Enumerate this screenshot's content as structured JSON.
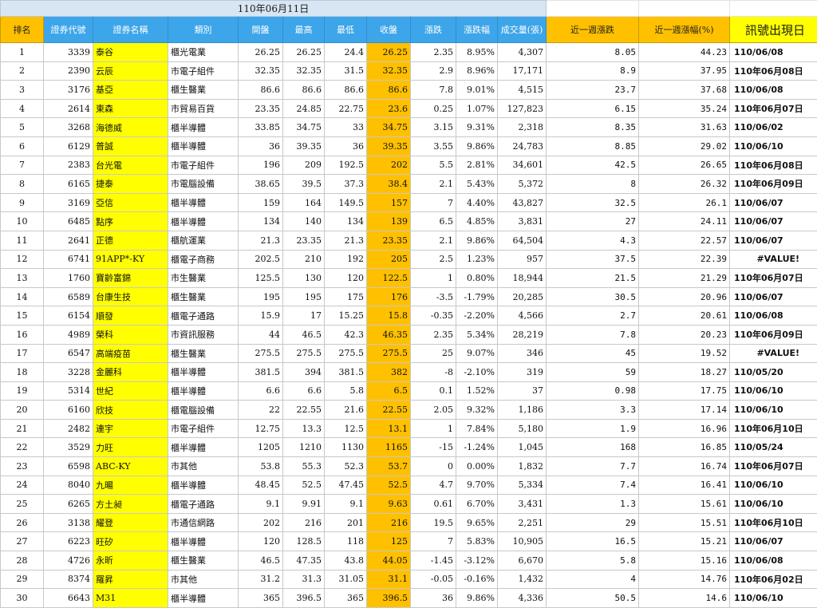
{
  "sheet": {
    "date_title": "110年06月11日",
    "headers": {
      "rank": "排名",
      "code": "證券代號",
      "name": "證券名稱",
      "category": "類別",
      "open": "開盤",
      "high": "最高",
      "low": "最低",
      "close": "收盤",
      "change": "漲跌",
      "change_pct": "漲跌幅",
      "volume": "成交量(張)",
      "week_change": "近一週漲跌",
      "week_change_pct": "近一週漲幅(%)",
      "signal": "訊號出現日"
    },
    "rows": [
      {
        "rank": "1",
        "code": "3339",
        "name": "泰谷",
        "category": "櫃光電業",
        "open": "26.25",
        "high": "26.25",
        "low": "24.4",
        "close": "26.25",
        "change": "2.35",
        "change_pct": "8.95%",
        "volume": "4,307",
        "week_change": "8.05",
        "week_change_pct": "44.23",
        "signal": "110/06/08",
        "dir": "up"
      },
      {
        "rank": "2",
        "code": "2390",
        "name": "云辰",
        "category": "市電子組件",
        "open": "32.35",
        "high": "32.35",
        "low": "31.5",
        "close": "32.35",
        "change": "2.9",
        "change_pct": "8.96%",
        "volume": "17,171",
        "week_change": "8.9",
        "week_change_pct": "37.95",
        "signal": "110年06月08日",
        "dir": "up"
      },
      {
        "rank": "3",
        "code": "3176",
        "name": "基亞",
        "category": "櫃生醫業",
        "open": "86.6",
        "high": "86.6",
        "low": "86.6",
        "close": "86.6",
        "change": "7.8",
        "change_pct": "9.01%",
        "volume": "4,515",
        "week_change": "23.7",
        "week_change_pct": "37.68",
        "signal": "110/06/08",
        "dir": "up"
      },
      {
        "rank": "4",
        "code": "2614",
        "name": "東森",
        "category": "市貿易百貨",
        "open": "23.35",
        "high": "24.85",
        "low": "22.75",
        "close": "23.6",
        "change": "0.25",
        "change_pct": "1.07%",
        "volume": "127,823",
        "week_change": "6.15",
        "week_change_pct": "35.24",
        "signal": "110年06月07日",
        "dir": "up"
      },
      {
        "rank": "5",
        "code": "3268",
        "name": "海德威",
        "category": "櫃半導體",
        "open": "33.85",
        "high": "34.75",
        "low": "33",
        "close": "34.75",
        "change": "3.15",
        "change_pct": "9.31%",
        "volume": "2,318",
        "week_change": "8.35",
        "week_change_pct": "31.63",
        "signal": "110/06/02",
        "dir": "up"
      },
      {
        "rank": "6",
        "code": "6129",
        "name": "普誠",
        "category": "櫃半導體",
        "open": "36",
        "high": "39.35",
        "low": "36",
        "close": "39.35",
        "change": "3.55",
        "change_pct": "9.86%",
        "volume": "24,783",
        "week_change": "8.85",
        "week_change_pct": "29.02",
        "signal": "110/06/10",
        "dir": "up"
      },
      {
        "rank": "7",
        "code": "2383",
        "name": "台光電",
        "category": "市電子組件",
        "open": "196",
        "high": "209",
        "low": "192.5",
        "close": "202",
        "change": "5.5",
        "change_pct": "2.81%",
        "volume": "34,601",
        "week_change": "42.5",
        "week_change_pct": "26.65",
        "signal": "110年06月08日",
        "dir": "up"
      },
      {
        "rank": "8",
        "code": "6165",
        "name": "捷泰",
        "category": "市電腦設備",
        "open": "38.65",
        "high": "39.5",
        "low": "37.3",
        "close": "38.4",
        "change": "2.1",
        "change_pct": "5.43%",
        "volume": "5,372",
        "week_change": "8",
        "week_change_pct": "26.32",
        "signal": "110年06月09日",
        "dir": "up"
      },
      {
        "rank": "9",
        "code": "3169",
        "name": "亞信",
        "category": "櫃半導體",
        "open": "159",
        "high": "164",
        "low": "149.5",
        "close": "157",
        "change": "7",
        "change_pct": "4.40%",
        "volume": "43,827",
        "week_change": "32.5",
        "week_change_pct": "26.1",
        "signal": "110/06/07",
        "dir": "up"
      },
      {
        "rank": "10",
        "code": "6485",
        "name": "點序",
        "category": "櫃半導體",
        "open": "134",
        "high": "140",
        "low": "134",
        "close": "139",
        "change": "6.5",
        "change_pct": "4.85%",
        "volume": "3,831",
        "week_change": "27",
        "week_change_pct": "24.11",
        "signal": "110/06/07",
        "dir": "up"
      },
      {
        "rank": "11",
        "code": "2641",
        "name": "正德",
        "category": "櫃航運業",
        "open": "21.3",
        "high": "23.35",
        "low": "21.3",
        "close": "23.35",
        "change": "2.1",
        "change_pct": "9.86%",
        "volume": "64,504",
        "week_change": "4.3",
        "week_change_pct": "22.57",
        "signal": "110/06/07",
        "dir": "up"
      },
      {
        "rank": "12",
        "code": "6741",
        "name": "91APP*-KY",
        "category": "櫃電子商務",
        "open": "202.5",
        "high": "210",
        "low": "192",
        "close": "205",
        "change": "2.5",
        "change_pct": "1.23%",
        "volume": "957",
        "week_change": "37.5",
        "week_change_pct": "22.39",
        "signal": "#VALUE!",
        "dir": "up"
      },
      {
        "rank": "13",
        "code": "1760",
        "name": "寶齡富錦",
        "category": "市生醫業",
        "open": "125.5",
        "high": "130",
        "low": "120",
        "close": "122.5",
        "change": "1",
        "change_pct": "0.80%",
        "volume": "18,944",
        "week_change": "21.5",
        "week_change_pct": "21.29",
        "signal": "110年06月07日",
        "dir": "up"
      },
      {
        "rank": "14",
        "code": "6589",
        "name": "台康生技",
        "category": "櫃生醫業",
        "open": "195",
        "high": "195",
        "low": "175",
        "close": "176",
        "change": "-3.5",
        "change_pct": "-1.79%",
        "volume": "20,285",
        "week_change": "30.5",
        "week_change_pct": "20.96",
        "signal": "110/06/07",
        "dir": "down"
      },
      {
        "rank": "15",
        "code": "6154",
        "name": "順發",
        "category": "櫃電子通路",
        "open": "15.9",
        "high": "17",
        "low": "15.25",
        "close": "15.8",
        "change": "-0.35",
        "change_pct": "-2.20%",
        "volume": "4,566",
        "week_change": "2.7",
        "week_change_pct": "20.61",
        "signal": "110/06/08",
        "dir": "down"
      },
      {
        "rank": "16",
        "code": "4989",
        "name": "榮科",
        "category": "市資訊服務",
        "open": "44",
        "high": "46.5",
        "low": "42.3",
        "close": "46.35",
        "change": "2.35",
        "change_pct": "5.34%",
        "volume": "28,219",
        "week_change": "7.8",
        "week_change_pct": "20.23",
        "signal": "110年06月09日",
        "dir": "up"
      },
      {
        "rank": "17",
        "code": "6547",
        "name": "高端疫苗",
        "category": "櫃生醫業",
        "open": "275.5",
        "high": "275.5",
        "low": "275.5",
        "close": "275.5",
        "change": "25",
        "change_pct": "9.07%",
        "volume": "346",
        "week_change": "45",
        "week_change_pct": "19.52",
        "signal": "#VALUE!",
        "dir": "up"
      },
      {
        "rank": "18",
        "code": "3228",
        "name": "金麗科",
        "category": "櫃半導體",
        "open": "381.5",
        "high": "394",
        "low": "381.5",
        "close": "382",
        "change": "-8",
        "change_pct": "-2.10%",
        "volume": "319",
        "week_change": "59",
        "week_change_pct": "18.27",
        "signal": "110/05/20",
        "dir": "down"
      },
      {
        "rank": "19",
        "code": "5314",
        "name": "世紀",
        "category": "櫃半導體",
        "open": "6.6",
        "high": "6.6",
        "low": "5.8",
        "close": "6.5",
        "change": "0.1",
        "change_pct": "1.52%",
        "volume": "37",
        "week_change": "0.98",
        "week_change_pct": "17.75",
        "signal": "110/06/10",
        "dir": "up"
      },
      {
        "rank": "20",
        "code": "6160",
        "name": "欣技",
        "category": "櫃電腦設備",
        "open": "22",
        "high": "22.55",
        "low": "21.6",
        "close": "22.55",
        "change": "2.05",
        "change_pct": "9.32%",
        "volume": "1,186",
        "week_change": "3.3",
        "week_change_pct": "17.14",
        "signal": "110/06/10",
        "dir": "up"
      },
      {
        "rank": "21",
        "code": "2482",
        "name": "連宇",
        "category": "市電子組件",
        "open": "12.75",
        "high": "13.3",
        "low": "12.5",
        "close": "13.1",
        "change": "1",
        "change_pct": "7.84%",
        "volume": "5,180",
        "week_change": "1.9",
        "week_change_pct": "16.96",
        "signal": "110年06月10日",
        "dir": "up"
      },
      {
        "rank": "22",
        "code": "3529",
        "name": "力旺",
        "category": "櫃半導體",
        "open": "1205",
        "high": "1210",
        "low": "1130",
        "close": "1165",
        "change": "-15",
        "change_pct": "-1.24%",
        "volume": "1,045",
        "week_change": "168",
        "week_change_pct": "16.85",
        "signal": "110/05/24",
        "dir": "down"
      },
      {
        "rank": "23",
        "code": "6598",
        "name": "ABC-KY",
        "category": "市其他",
        "open": "53.8",
        "high": "55.3",
        "low": "52.3",
        "close": "53.7",
        "change": "0",
        "change_pct": "0.00%",
        "volume": "1,832",
        "week_change": "7.7",
        "week_change_pct": "16.74",
        "signal": "110年06月07日",
        "dir": "flat"
      },
      {
        "rank": "24",
        "code": "8040",
        "name": "九暘",
        "category": "櫃半導體",
        "open": "48.45",
        "high": "52.5",
        "low": "47.45",
        "close": "52.5",
        "change": "4.7",
        "change_pct": "9.70%",
        "volume": "5,334",
        "week_change": "7.4",
        "week_change_pct": "16.41",
        "signal": "110/06/10",
        "dir": "up"
      },
      {
        "rank": "25",
        "code": "6265",
        "name": "方土昶",
        "category": "櫃電子通路",
        "open": "9.1",
        "high": "9.91",
        "low": "9.1",
        "close": "9.63",
        "change": "0.61",
        "change_pct": "6.70%",
        "volume": "3,431",
        "week_change": "1.3",
        "week_change_pct": "15.61",
        "signal": "110/06/10",
        "dir": "up"
      },
      {
        "rank": "26",
        "code": "3138",
        "name": "耀登",
        "category": "市通信網路",
        "open": "202",
        "high": "216",
        "low": "201",
        "close": "216",
        "change": "19.5",
        "change_pct": "9.65%",
        "volume": "2,251",
        "week_change": "29",
        "week_change_pct": "15.51",
        "signal": "110年06月10日",
        "dir": "up"
      },
      {
        "rank": "27",
        "code": "6223",
        "name": "旺矽",
        "category": "櫃半導體",
        "open": "120",
        "high": "128.5",
        "low": "118",
        "close": "125",
        "change": "7",
        "change_pct": "5.83%",
        "volume": "10,905",
        "week_change": "16.5",
        "week_change_pct": "15.21",
        "signal": "110/06/07",
        "dir": "up"
      },
      {
        "rank": "28",
        "code": "4726",
        "name": "永昕",
        "category": "櫃生醫業",
        "open": "46.5",
        "high": "47.35",
        "low": "43.8",
        "close": "44.05",
        "change": "-1.45",
        "change_pct": "-3.12%",
        "volume": "6,670",
        "week_change": "5.8",
        "week_change_pct": "15.16",
        "signal": "110/06/08",
        "dir": "down"
      },
      {
        "rank": "29",
        "code": "8374",
        "name": "羅昇",
        "category": "市其他",
        "open": "31.2",
        "high": "31.3",
        "low": "31.05",
        "close": "31.1",
        "change": "-0.05",
        "change_pct": "-0.16%",
        "volume": "1,432",
        "week_change": "4",
        "week_change_pct": "14.76",
        "signal": "110年06月02日",
        "dir": "down"
      },
      {
        "rank": "30",
        "code": "6643",
        "name": "M31",
        "category": "櫃半導體",
        "open": "365",
        "high": "396.5",
        "low": "365",
        "close": "396.5",
        "change": "36",
        "change_pct": "9.86%",
        "volume": "4,336",
        "week_change": "50.5",
        "week_change_pct": "14.6",
        "signal": "110/06/10",
        "dir": "up"
      }
    ]
  },
  "colors": {
    "header_orange": "#ffc000",
    "header_blue": "#3da5e9",
    "highlight_yellow": "#ffff00",
    "up_red": "#d2202c",
    "down_green": "#1aa34a"
  }
}
